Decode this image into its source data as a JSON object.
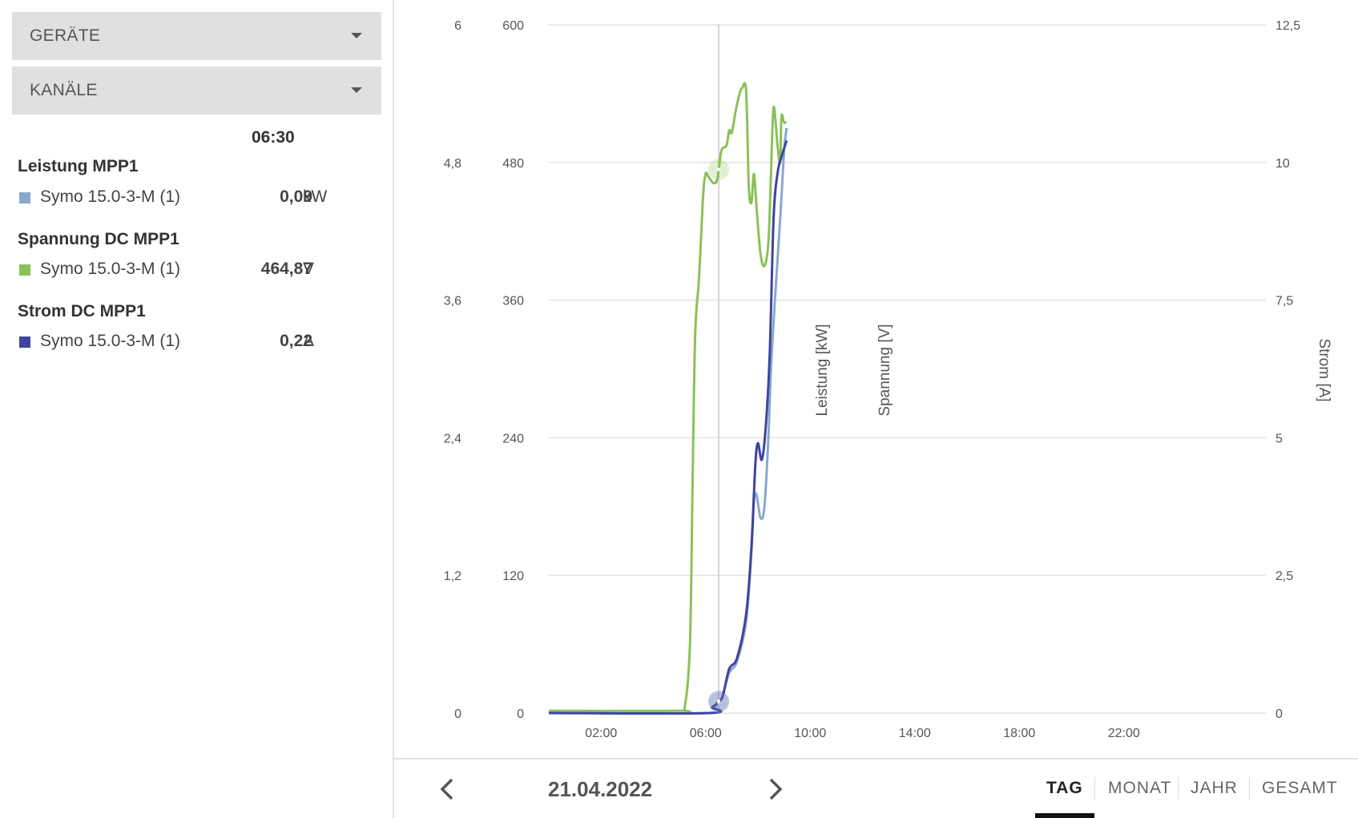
{
  "sidebar": {
    "dropdowns": [
      {
        "label": "GERÄTE"
      },
      {
        "label": "KANÄLE"
      }
    ],
    "time": "06:30",
    "groups": [
      {
        "title": "Leistung MPP1",
        "entry": {
          "name": "Symo 15.0-3-M (1)",
          "value": "0,09",
          "unit": "kW",
          "color": "#87a9cc"
        }
      },
      {
        "title": "Spannung DC MPP1",
        "entry": {
          "name": "Symo 15.0-3-M (1)",
          "value": "464,87",
          "unit": "V",
          "color": "#8bc158"
        }
      },
      {
        "title": "Strom DC MPP1",
        "entry": {
          "name": "Symo 15.0-3-M (1)",
          "value": "0,22",
          "unit": "A",
          "color": "#3f43a0"
        }
      }
    ]
  },
  "footer": {
    "date": "21.04.2022",
    "tabs": [
      {
        "label": "TAG",
        "active": true
      },
      {
        "label": "MONAT",
        "active": false
      },
      {
        "label": "JAHR",
        "active": false
      },
      {
        "label": "GESAMT",
        "active": false
      }
    ]
  },
  "chart_data": {
    "type": "line",
    "x_unit": "hours",
    "x_range": [
      0,
      24
    ],
    "x_ticks": [
      {
        "value": 2,
        "label": "02:00"
      },
      {
        "value": 6,
        "label": "06:00"
      },
      {
        "value": 10,
        "label": "10:00"
      },
      {
        "value": 14,
        "label": "14:00"
      },
      {
        "value": 18,
        "label": "18:00"
      },
      {
        "value": 22,
        "label": "22:00"
      }
    ],
    "grid": true,
    "cursor_x": 6.5,
    "axes": [
      {
        "id": "power",
        "label": "Leistung [kW]",
        "range": [
          0,
          6
        ],
        "ticks": [
          "0",
          "1,2",
          "2,4",
          "3,6",
          "4,8",
          "6"
        ],
        "position": "left-outer"
      },
      {
        "id": "voltage",
        "label": "Spannung [V]",
        "range": [
          0,
          600
        ],
        "ticks": [
          "0",
          "120",
          "240",
          "360",
          "480",
          "600"
        ],
        "position": "left-inner"
      },
      {
        "id": "current",
        "label": "Strom [A]",
        "range": [
          0,
          12.5
        ],
        "ticks": [
          "0",
          "2,5",
          "5",
          "7,5",
          "10",
          "12,5"
        ],
        "position": "right"
      }
    ],
    "series": [
      {
        "name": "Spannung DC MPP1",
        "axis": "voltage",
        "color": "#8bc158",
        "points": [
          [
            0,
            2
          ],
          [
            5,
            2
          ],
          [
            5.2,
            5
          ],
          [
            5.4,
            60
          ],
          [
            5.5,
            200
          ],
          [
            5.6,
            330
          ],
          [
            5.75,
            380
          ],
          [
            5.9,
            450
          ],
          [
            6,
            470
          ],
          [
            6.1,
            468
          ],
          [
            6.3,
            462
          ],
          [
            6.45,
            466
          ],
          [
            6.6,
            490
          ],
          [
            6.8,
            495
          ],
          [
            6.9,
            508
          ],
          [
            7.0,
            506
          ],
          [
            7.15,
            525
          ],
          [
            7.3,
            540
          ],
          [
            7.4,
            545
          ],
          [
            7.55,
            542
          ],
          [
            7.65,
            460
          ],
          [
            7.75,
            445
          ],
          [
            7.85,
            470
          ],
          [
            7.95,
            440
          ],
          [
            8.1,
            400
          ],
          [
            8.25,
            390
          ],
          [
            8.4,
            410
          ],
          [
            8.5,
            470
          ],
          [
            8.6,
            528
          ],
          [
            8.75,
            495
          ],
          [
            8.85,
            480
          ],
          [
            8.9,
            520
          ],
          [
            9.0,
            515
          ],
          [
            9.1,
            515
          ]
        ]
      },
      {
        "name": "Leistung MPP1",
        "axis": "power",
        "color": "#87a9cc",
        "points": [
          [
            0,
            0
          ],
          [
            6.1,
            0
          ],
          [
            6.25,
            0.05
          ],
          [
            6.4,
            0.08
          ],
          [
            6.5,
            0.09
          ],
          [
            6.65,
            0.15
          ],
          [
            6.9,
            0.35
          ],
          [
            7.2,
            0.45
          ],
          [
            7.55,
            0.8
          ],
          [
            7.75,
            1.4
          ],
          [
            7.85,
            1.85
          ],
          [
            7.95,
            1.9
          ],
          [
            8.1,
            1.7
          ],
          [
            8.25,
            1.8
          ],
          [
            8.4,
            2.4
          ],
          [
            8.5,
            3.0
          ],
          [
            8.65,
            3.6
          ],
          [
            8.85,
            4.3
          ],
          [
            9.0,
            4.9
          ],
          [
            9.1,
            5.1
          ]
        ]
      },
      {
        "name": "Strom DC MPP1",
        "axis": "current",
        "color": "#3f43a0",
        "points": [
          [
            0,
            0
          ],
          [
            6.1,
            0
          ],
          [
            6.25,
            0.1
          ],
          [
            6.4,
            0.15
          ],
          [
            6.5,
            0.22
          ],
          [
            6.65,
            0.3
          ],
          [
            6.9,
            0.8
          ],
          [
            7.2,
            1.0
          ],
          [
            7.55,
            1.8
          ],
          [
            7.75,
            3.0
          ],
          [
            7.9,
            4.5
          ],
          [
            8.0,
            4.9
          ],
          [
            8.15,
            4.6
          ],
          [
            8.3,
            5.2
          ],
          [
            8.45,
            6.5
          ],
          [
            8.6,
            9.0
          ],
          [
            8.75,
            9.8
          ],
          [
            8.9,
            10.1
          ],
          [
            9.1,
            10.4
          ]
        ]
      }
    ]
  }
}
